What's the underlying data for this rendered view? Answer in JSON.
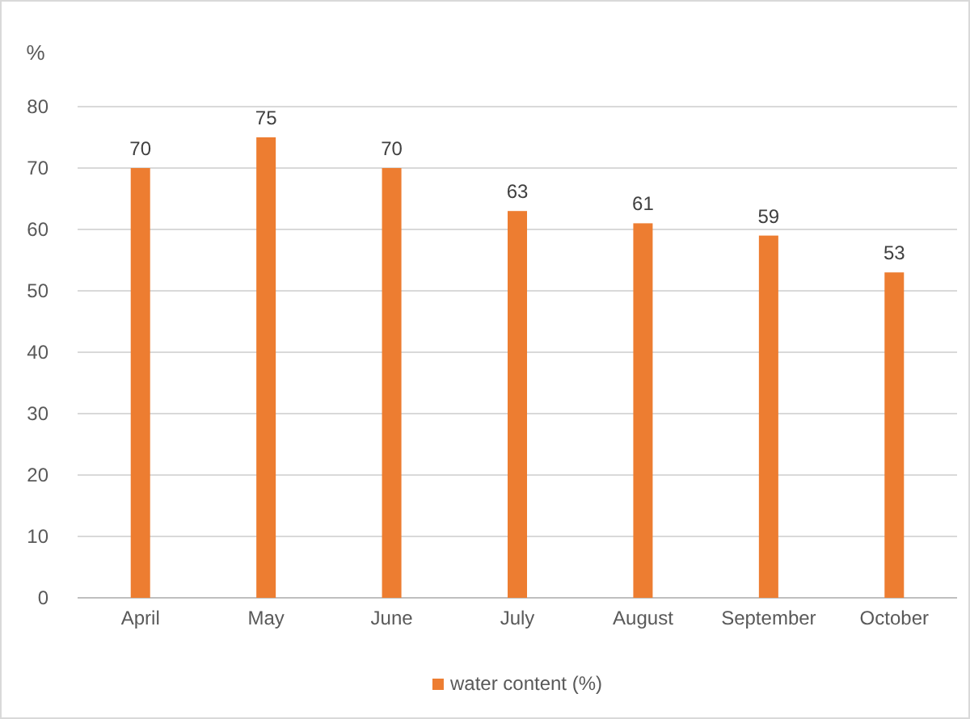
{
  "chart_data": {
    "type": "bar",
    "ylabel": "%",
    "categories": [
      "April",
      "May",
      "June",
      "July",
      "August",
      "September",
      "October"
    ],
    "series": [
      {
        "name": "water content (%)",
        "color": "#ed7d31",
        "values": [
          70,
          75,
          70,
          63,
          61,
          59,
          53
        ]
      }
    ],
    "ylim": [
      0,
      80
    ],
    "yticks": [
      0,
      10,
      20,
      30,
      40,
      50,
      60,
      70,
      80
    ],
    "grid": "y",
    "legend": "bottom",
    "data_labels": true
  }
}
